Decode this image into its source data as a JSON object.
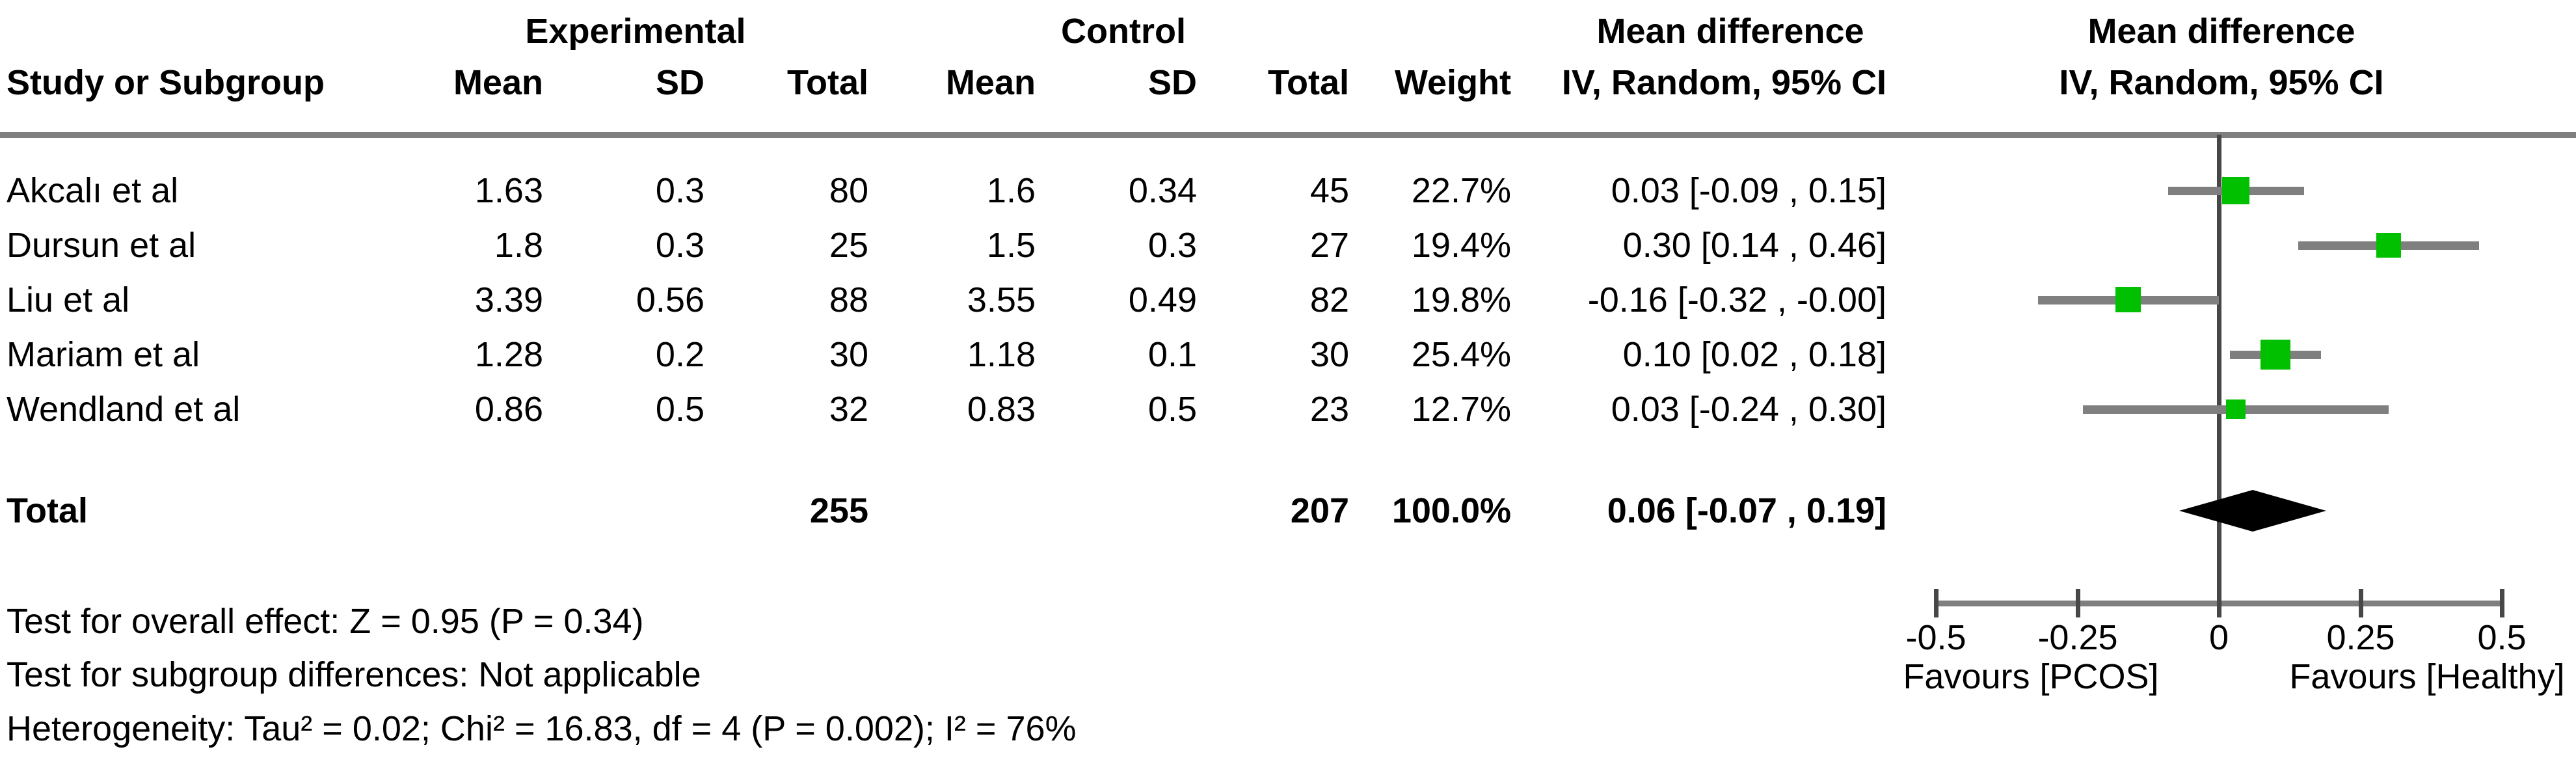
{
  "labels": {
    "experimental": "Experimental",
    "control": "Control",
    "mean_difference_text_col": "Mean difference",
    "mean_difference_plot_col": "Mean difference",
    "study_or_subgroup": "Study or Subgroup",
    "mean": "Mean",
    "sd": "SD",
    "total": "Total",
    "weight": "Weight",
    "iv_random_text_col": "IV, Random, 95% CI",
    "iv_random_plot_col": "IV, Random, 95% CI",
    "total_row_label": "Total"
  },
  "footer": {
    "overall_effect": "Test for overall effect: Z = 0.95 (P = 0.34)",
    "subgroup_differences": "Test for subgroup differences: Not applicable",
    "heterogeneity": "Heterogeneity: Tau² = 0.02; Chi² = 16.83, df = 4 (P = 0.002); I² = 76%"
  },
  "colors": {
    "marker_green": "#00c000",
    "ci_bar_gray": "#7f7f7f",
    "axis_gray": "#7f7f7f",
    "zero_line_dark": "#474747",
    "diamond_black": "#000000"
  },
  "chart_data": {
    "type": "scatter",
    "variant": "forest-plot-mean-difference",
    "effect_model": "IV, Random, 95% CI",
    "studies": [
      {
        "name": "Akcalı et al",
        "exp_mean": "1.63",
        "exp_sd": "0.3",
        "exp_total": "80",
        "ctrl_mean": "1.6",
        "ctrl_sd": "0.34",
        "ctrl_total": "45",
        "weight": "22.7%",
        "ci_label": "0.03 [-0.09 , 0.15]",
        "md": 0.03,
        "lo": -0.09,
        "hi": 0.15,
        "weight_pct": 22.7
      },
      {
        "name": "Dursun et al",
        "exp_mean": "1.8",
        "exp_sd": "0.3",
        "exp_total": "25",
        "ctrl_mean": "1.5",
        "ctrl_sd": "0.3",
        "ctrl_total": "27",
        "weight": "19.4%",
        "ci_label": "0.30 [0.14 , 0.46]",
        "md": 0.3,
        "lo": 0.14,
        "hi": 0.46,
        "weight_pct": 19.4
      },
      {
        "name": "Liu et al",
        "exp_mean": "3.39",
        "exp_sd": "0.56",
        "exp_total": "88",
        "ctrl_mean": "3.55",
        "ctrl_sd": "0.49",
        "ctrl_total": "82",
        "weight": "19.8%",
        "ci_label": "-0.16 [-0.32 , -0.00]",
        "md": -0.16,
        "lo": -0.32,
        "hi": 0.0,
        "weight_pct": 19.8
      },
      {
        "name": "Mariam et al",
        "exp_mean": "1.28",
        "exp_sd": "0.2",
        "exp_total": "30",
        "ctrl_mean": "1.18",
        "ctrl_sd": "0.1",
        "ctrl_total": "30",
        "weight": "25.4%",
        "ci_label": "0.10 [0.02 , 0.18]",
        "md": 0.1,
        "lo": 0.02,
        "hi": 0.18,
        "weight_pct": 25.4
      },
      {
        "name": "Wendland et al",
        "exp_mean": "0.86",
        "exp_sd": "0.5",
        "exp_total": "32",
        "ctrl_mean": "0.83",
        "ctrl_sd": "0.5",
        "ctrl_total": "23",
        "weight": "12.7%",
        "ci_label": "0.03 [-0.24 , 0.30]",
        "md": 0.03,
        "lo": -0.24,
        "hi": 0.3,
        "weight_pct": 12.7
      }
    ],
    "total": {
      "label": "Total",
      "exp_total": "255",
      "ctrl_total": "207",
      "weight": "100.0%",
      "ci_label": "0.06 [-0.07 , 0.19]",
      "md": 0.06,
      "lo": -0.07,
      "hi": 0.19
    },
    "xlim": [
      -0.5,
      0.5
    ],
    "x_ticks": [
      {
        "v": -0.5,
        "label": "-0.5"
      },
      {
        "v": -0.25,
        "label": "-0.25"
      },
      {
        "v": 0,
        "label": "0"
      },
      {
        "v": 0.25,
        "label": "0.25"
      },
      {
        "v": 0.5,
        "label": "0.5"
      }
    ],
    "favours_left": "Favours [PCOS]",
    "favours_right": "Favours [Healthy]",
    "test_overall_effect": "Z = 0.95 (P = 0.34)",
    "heterogeneity": "Tau² = 0.02; Chi² = 16.83, df = 4 (P = 0.002); I² = 76%"
  }
}
